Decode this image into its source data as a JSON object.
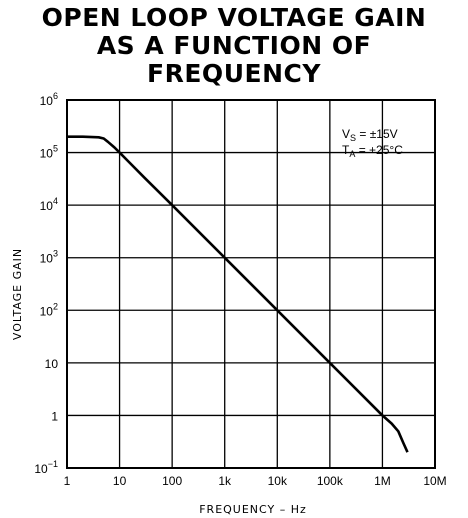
{
  "chart_data": {
    "type": "line",
    "title_lines": [
      "OPEN LOOP VOLTAGE GAIN",
      "AS A FUNCTION OF",
      "FREQUENCY"
    ],
    "xlabel": "FREQUENCY – Hz",
    "ylabel": "VOLTAGE GAIN",
    "x_scale": "log",
    "y_scale": "log",
    "xlim": [
      1,
      10000000
    ],
    "ylim": [
      0.1,
      1000000
    ],
    "x_ticks": [
      {
        "value": 1,
        "label": "1"
      },
      {
        "value": 10,
        "label": "10"
      },
      {
        "value": 100,
        "label": "100"
      },
      {
        "value": 1000,
        "label": "1k"
      },
      {
        "value": 10000,
        "label": "10k"
      },
      {
        "value": 100000,
        "label": "100k"
      },
      {
        "value": 1000000,
        "label": "1M"
      },
      {
        "value": 10000000,
        "label": "10M"
      }
    ],
    "y_ticks": [
      {
        "value": 0.1,
        "base": "10",
        "exp": "−1"
      },
      {
        "value": 1,
        "base": "1",
        "exp": ""
      },
      {
        "value": 10,
        "base": "10",
        "exp": ""
      },
      {
        "value": 100,
        "base": "10",
        "exp": "2"
      },
      {
        "value": 1000,
        "base": "10",
        "exp": "3"
      },
      {
        "value": 10000,
        "base": "10",
        "exp": "4"
      },
      {
        "value": 100000,
        "base": "10",
        "exp": "5"
      },
      {
        "value": 1000000,
        "base": "10",
        "exp": "6"
      }
    ],
    "grid": true,
    "annotations": {
      "vs_text": "V",
      "vs_sub": "S",
      "vs_val": " = ±15V",
      "ta_text": "T",
      "ta_sub": "A",
      "ta_val": " = +25°C"
    },
    "series": [
      {
        "x": [
          1,
          2,
          4,
          5,
          6,
          8,
          10,
          30,
          100,
          1000,
          10000,
          100000,
          1000000,
          1500000,
          2000000,
          2500000,
          3000000
        ],
        "y": [
          200000,
          200000,
          195000,
          185000,
          160000,
          125000,
          100000,
          33000,
          10000,
          1000,
          100,
          10,
          1,
          0.7,
          0.5,
          0.3,
          0.2
        ]
      }
    ]
  }
}
